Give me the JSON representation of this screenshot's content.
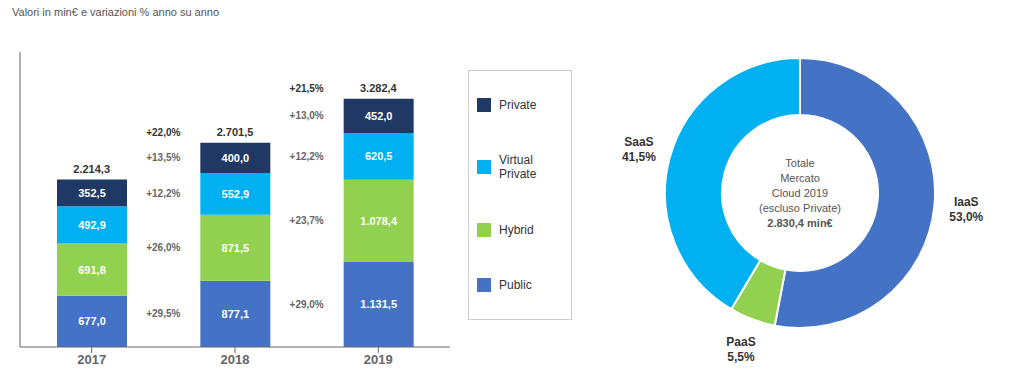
{
  "chart_data": [
    {
      "type": "bar",
      "subtitle": "Valori in min€ e variazioni % anno su anno",
      "categories": [
        "2017",
        "2018",
        "2019"
      ],
      "stacked": true,
      "data_labels": true,
      "tick_labels": "x",
      "legend": "right",
      "ylim": [
        0,
        3900
      ],
      "series": [
        {
          "name": "Public",
          "color": "#4472c4",
          "values": [
            677.0,
            877.1,
            1131.5
          ],
          "value_labels": [
            "677,0",
            "877,1",
            "1.131,5"
          ],
          "growth_labels": [
            "+29,5%",
            "+29,0%"
          ]
        },
        {
          "name": "Hybrid",
          "color": "#92d050",
          "values": [
            691.8,
            871.5,
            1078.4
          ],
          "value_labels": [
            "691,8",
            "871,5",
            "1.078,4"
          ],
          "growth_labels": [
            "+26,0%",
            "+23,7%"
          ]
        },
        {
          "name": "Virtual Private",
          "color": "#00b0f0",
          "values": [
            492.9,
            552.9,
            620.5
          ],
          "value_labels": [
            "492,9",
            "552,9",
            "620,5"
          ],
          "growth_labels": [
            "+12,2%",
            "+12,2%"
          ]
        },
        {
          "name": "Private",
          "color": "#1f3864",
          "values": [
            352.5,
            400.0,
            452.0
          ],
          "value_labels": [
            "352,5",
            "400,0",
            "452,0"
          ],
          "growth_labels": [
            "+13,5%",
            "+13,0%"
          ]
        }
      ],
      "total_labels": [
        "2.214,3",
        "2.701,5",
        "3.282,4"
      ],
      "total_growth_labels": [
        null,
        "+22,0%",
        "+21,5%"
      ]
    },
    {
      "type": "pie",
      "categories": [
        "IaaS",
        "PaaS",
        "SaaS"
      ],
      "values": [
        53.0,
        5.5,
        41.5
      ],
      "value_labels": [
        "53,0%",
        "5,5%",
        "41,5%"
      ],
      "colors": [
        "#4472c4",
        "#92d050",
        "#00b0f0"
      ],
      "center_text": [
        "Totale",
        "Mercato",
        "Cloud 2019",
        "(escluso Private)",
        "2.830,4 min€"
      ]
    }
  ]
}
